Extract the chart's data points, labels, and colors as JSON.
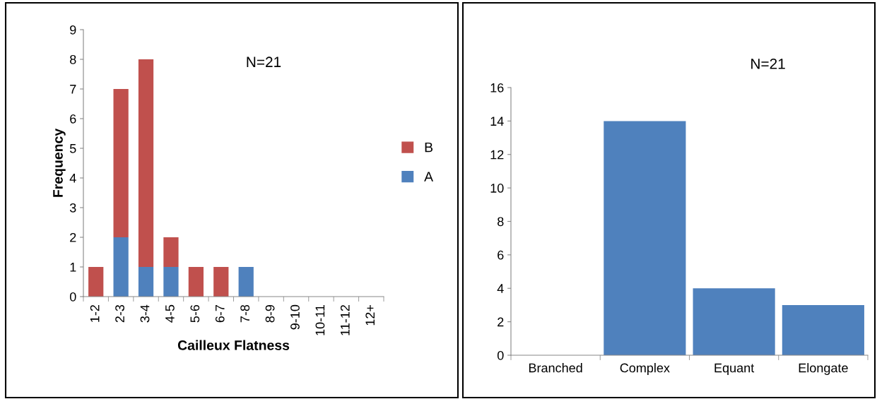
{
  "chart_data": [
    {
      "type": "bar",
      "stacked": true,
      "xlabel": "Cailleux Flatness",
      "ylabel": "Frequency",
      "annotations": [
        "N=21"
      ],
      "categories": [
        "1-2",
        "2-3",
        "3-4",
        "4-5",
        "5-6",
        "6-7",
        "7-8",
        "8-9",
        "9-10",
        "10-11",
        "11-12",
        "12+"
      ],
      "series": [
        {
          "name": "A",
          "color": "#4f81bd",
          "values": [
            0,
            2,
            1,
            1,
            0,
            0,
            1,
            0,
            0,
            0,
            0,
            0
          ]
        },
        {
          "name": "B",
          "color": "#c0504d",
          "values": [
            1,
            5,
            7,
            1,
            1,
            1,
            0,
            0,
            0,
            0,
            0,
            0
          ]
        }
      ],
      "ylim": [
        0,
        9
      ],
      "yticks": [
        0,
        1,
        2,
        3,
        4,
        5,
        6,
        7,
        8,
        9
      ],
      "legend": "right",
      "grid": false
    },
    {
      "type": "bar",
      "annotations": [
        "N=21"
      ],
      "categories": [
        "Branched",
        "Complex",
        "Equant",
        "Elongate"
      ],
      "values": [
        0,
        14,
        4,
        3
      ],
      "color": "#4f81bd",
      "ylim": [
        0,
        16
      ],
      "yticks": [
        0,
        2,
        4,
        6,
        8,
        10,
        12,
        14,
        16
      ],
      "grid": false
    }
  ]
}
